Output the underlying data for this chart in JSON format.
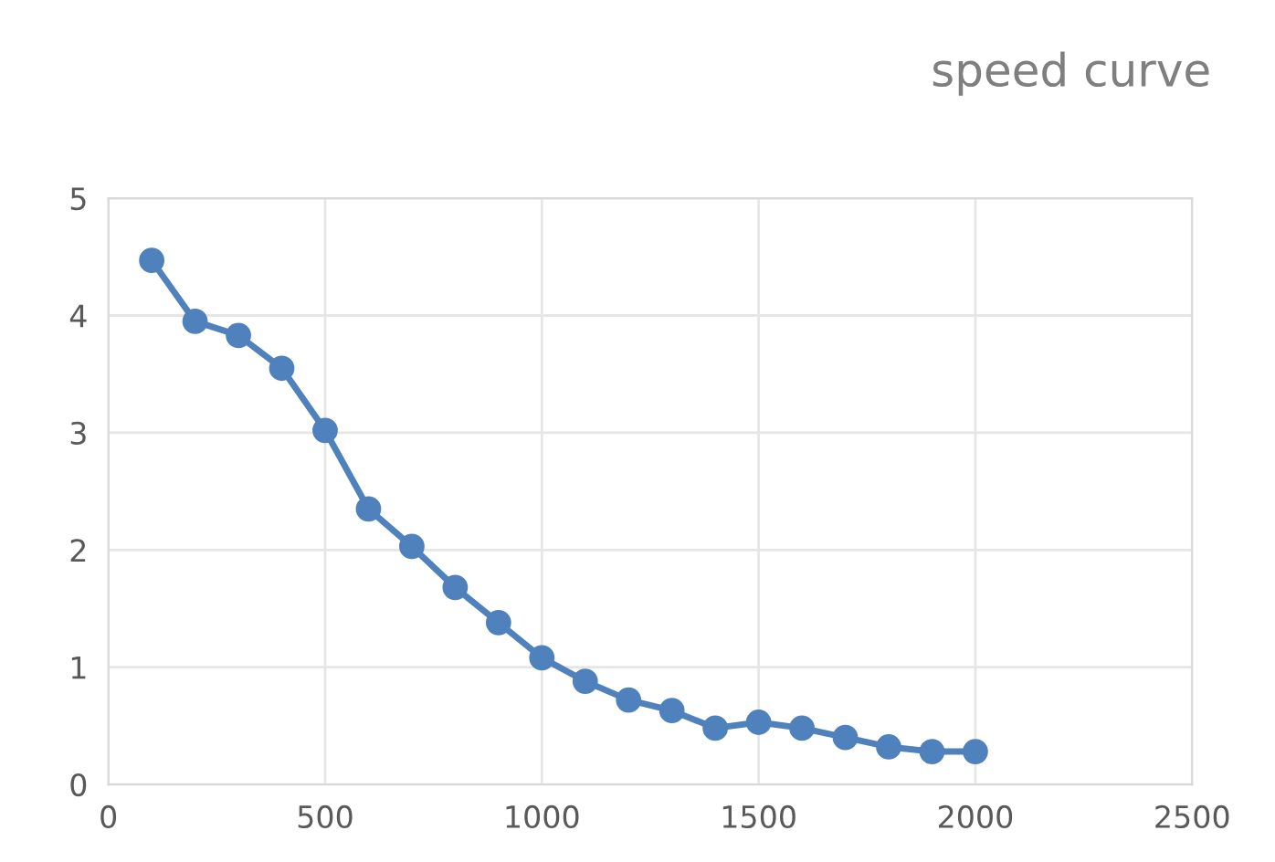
{
  "chart_data": {
    "type": "line",
    "title": "speed curve",
    "x": [
      100,
      200,
      300,
      400,
      500,
      600,
      700,
      800,
      900,
      1000,
      1100,
      1200,
      1300,
      1400,
      1500,
      1600,
      1700,
      1800,
      1900,
      2000
    ],
    "series": [
      {
        "color": "#4f81bd",
        "values": [
          4.47,
          3.95,
          3.83,
          3.55,
          3.02,
          2.35,
          2.03,
          1.68,
          1.38,
          1.08,
          0.88,
          0.72,
          0.63,
          0.48,
          0.53,
          0.48,
          0.4,
          0.32,
          0.28,
          0.28
        ]
      }
    ],
    "xlim": [
      0,
      2500
    ],
    "xticks": [
      0,
      500,
      1000,
      1500,
      2000,
      2500
    ],
    "ylim": [
      0,
      5
    ],
    "yticks": [
      0,
      1,
      2,
      3,
      4,
      5
    ],
    "grid": true,
    "marker": "circle",
    "line_style": "solid"
  }
}
